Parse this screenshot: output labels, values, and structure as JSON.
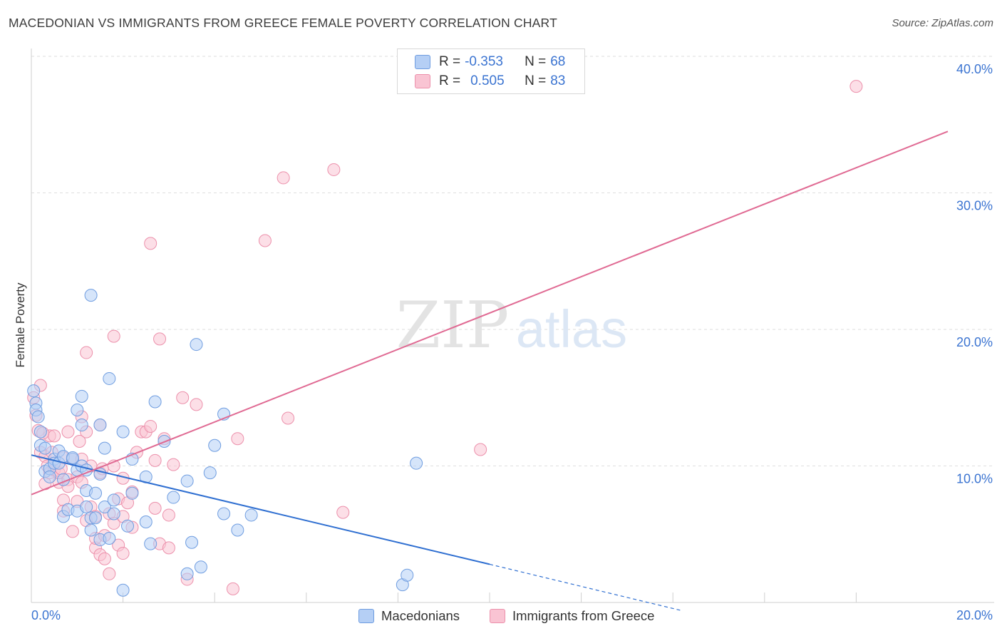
{
  "title": "MACEDONIAN VS IMMIGRANTS FROM GREECE FEMALE POVERTY CORRELATION CHART",
  "source": "Source: ZipAtlas.com",
  "watermark": {
    "zip": "ZIP",
    "atlas": "atlas"
  },
  "legend": {
    "row1": {
      "r_label": "R = ",
      "r_value": "-0.353",
      "n_label": "N = ",
      "n_value": "68"
    },
    "row2": {
      "r_label": "R = ",
      "r_value": "0.505",
      "n_label": "N = ",
      "n_value": "83"
    }
  },
  "bottom_legend": {
    "series1": "Macedonians",
    "series2": "Immigrants from Greece"
  },
  "colors": {
    "blue_fill": "#b5cff5",
    "blue_stroke": "#6f9de0",
    "blue_line": "#2f6fd1",
    "pink_fill": "#f9c4d3",
    "pink_stroke": "#ec90ab",
    "pink_line": "#e06a93",
    "axis_label": "#3b74d1"
  },
  "chart_data": {
    "type": "scatter",
    "title": "MACEDONIAN VS IMMIGRANTS FROM GREECE FEMALE POVERTY CORRELATION CHART",
    "ylabel": "Female Poverty",
    "xlabel": "",
    "xlim": [
      0,
      20
    ],
    "ylim": [
      0,
      40
    ],
    "x_tick_labels": [
      "0.0%",
      "20.0%"
    ],
    "y_tick_labels": [
      "10.0%",
      "20.0%",
      "30.0%",
      "40.0%"
    ],
    "y_ticks": [
      10,
      20,
      30,
      40
    ],
    "series": [
      {
        "name": "Macedonians",
        "r": -0.353,
        "n": 68,
        "trend": {
          "x0": 0,
          "y0": 10.8,
          "x1": 10,
          "y1": 2.8,
          "dashed_to_x": 14.2,
          "dashed_to_y": -0.6
        },
        "points": [
          [
            0.1,
            14.6
          ],
          [
            0.1,
            14.1
          ],
          [
            0.2,
            12.5
          ],
          [
            0.2,
            11.5
          ],
          [
            0.3,
            11.3
          ],
          [
            0.3,
            9.6
          ],
          [
            0.4,
            9.8
          ],
          [
            0.4,
            9.2
          ],
          [
            0.5,
            10.5
          ],
          [
            0.5,
            10.2
          ],
          [
            0.6,
            11.1
          ],
          [
            0.6,
            10.2
          ],
          [
            0.7,
            10.7
          ],
          [
            0.7,
            9.0
          ],
          [
            0.7,
            6.3
          ],
          [
            0.8,
            6.8
          ],
          [
            0.9,
            10.5
          ],
          [
            0.9,
            10.6
          ],
          [
            1.0,
            14.1
          ],
          [
            1.0,
            6.7
          ],
          [
            1.0,
            9.7
          ],
          [
            1.1,
            15.1
          ],
          [
            1.1,
            13.0
          ],
          [
            1.1,
            10.0
          ],
          [
            1.2,
            9.7
          ],
          [
            1.2,
            7.0
          ],
          [
            1.2,
            8.2
          ],
          [
            1.3,
            5.3
          ],
          [
            1.3,
            22.5
          ],
          [
            1.3,
            6.2
          ],
          [
            1.4,
            6.2
          ],
          [
            1.4,
            8.0
          ],
          [
            1.5,
            13.0
          ],
          [
            1.5,
            9.4
          ],
          [
            1.5,
            4.6
          ],
          [
            1.6,
            7.0
          ],
          [
            1.6,
            11.3
          ],
          [
            1.7,
            4.7
          ],
          [
            1.7,
            16.4
          ],
          [
            1.8,
            6.5
          ],
          [
            1.8,
            7.5
          ],
          [
            2.0,
            12.5
          ],
          [
            2.0,
            0.9
          ],
          [
            2.1,
            5.6
          ],
          [
            2.2,
            8.0
          ],
          [
            2.2,
            10.5
          ],
          [
            2.5,
            9.2
          ],
          [
            2.5,
            5.9
          ],
          [
            2.6,
            4.3
          ],
          [
            2.7,
            14.7
          ],
          [
            2.9,
            11.8
          ],
          [
            3.1,
            7.7
          ],
          [
            3.4,
            8.9
          ],
          [
            3.4,
            2.1
          ],
          [
            3.5,
            4.4
          ],
          [
            3.6,
            18.9
          ],
          [
            3.7,
            2.6
          ],
          [
            3.9,
            9.5
          ],
          [
            4.0,
            11.5
          ],
          [
            4.2,
            6.5
          ],
          [
            4.2,
            13.8
          ],
          [
            4.5,
            5.3
          ],
          [
            4.8,
            6.4
          ],
          [
            8.1,
            1.3
          ],
          [
            8.2,
            2.0
          ],
          [
            8.4,
            10.2
          ],
          [
            0.05,
            15.5
          ],
          [
            0.15,
            13.6
          ]
        ]
      },
      {
        "name": "Immigrants from Greece",
        "r": 0.505,
        "n": 83,
        "trend": {
          "x0": 0,
          "y0": 7.9,
          "x1": 20,
          "y1": 34.5
        },
        "points": [
          [
            0.05,
            15.0
          ],
          [
            0.1,
            13.7
          ],
          [
            0.15,
            12.6
          ],
          [
            0.2,
            15.9
          ],
          [
            0.2,
            11.0
          ],
          [
            0.3,
            10.7
          ],
          [
            0.3,
            8.7
          ],
          [
            0.35,
            10.0
          ],
          [
            0.4,
            12.2
          ],
          [
            0.4,
            9.5
          ],
          [
            0.5,
            12.2
          ],
          [
            0.5,
            9.7
          ],
          [
            0.6,
            8.8
          ],
          [
            0.6,
            9.5
          ],
          [
            0.7,
            10.6
          ],
          [
            0.7,
            7.5
          ],
          [
            0.7,
            6.7
          ],
          [
            0.8,
            12.5
          ],
          [
            0.8,
            9.0
          ],
          [
            0.8,
            8.5
          ],
          [
            0.9,
            10.5
          ],
          [
            0.9,
            5.2
          ],
          [
            1.0,
            9.2
          ],
          [
            1.0,
            7.4
          ],
          [
            1.1,
            10.5
          ],
          [
            1.1,
            8.8
          ],
          [
            1.1,
            13.6
          ],
          [
            1.2,
            12.5
          ],
          [
            1.2,
            6.0
          ],
          [
            1.2,
            18.3
          ],
          [
            1.3,
            10.0
          ],
          [
            1.3,
            7.0
          ],
          [
            1.4,
            4.0
          ],
          [
            1.4,
            6.3
          ],
          [
            1.4,
            4.7
          ],
          [
            1.5,
            9.5
          ],
          [
            1.5,
            3.5
          ],
          [
            1.5,
            13.0
          ],
          [
            1.6,
            4.9
          ],
          [
            1.6,
            3.2
          ],
          [
            1.7,
            6.5
          ],
          [
            1.7,
            2.1
          ],
          [
            1.8,
            19.5
          ],
          [
            1.8,
            10.0
          ],
          [
            1.8,
            5.8
          ],
          [
            1.9,
            4.2
          ],
          [
            1.9,
            7.6
          ],
          [
            2.0,
            6.3
          ],
          [
            2.0,
            3.6
          ],
          [
            2.0,
            9.1
          ],
          [
            2.1,
            7.3
          ],
          [
            2.2,
            5.5
          ],
          [
            2.2,
            8.1
          ],
          [
            2.3,
            11.0
          ],
          [
            2.4,
            12.5
          ],
          [
            2.5,
            12.5
          ],
          [
            2.6,
            26.3
          ],
          [
            2.6,
            12.9
          ],
          [
            2.7,
            6.9
          ],
          [
            2.7,
            10.4
          ],
          [
            2.8,
            19.3
          ],
          [
            2.8,
            4.3
          ],
          [
            2.9,
            12.0
          ],
          [
            3.0,
            6.4
          ],
          [
            3.0,
            4.0
          ],
          [
            3.1,
            10.1
          ],
          [
            3.3,
            15.0
          ],
          [
            3.4,
            1.7
          ],
          [
            3.6,
            14.5
          ],
          [
            4.4,
            1.0
          ],
          [
            4.5,
            12.0
          ],
          [
            5.1,
            26.5
          ],
          [
            5.5,
            31.1
          ],
          [
            5.6,
            13.5
          ],
          [
            6.6,
            31.7
          ],
          [
            6.8,
            6.6
          ],
          [
            9.8,
            11.2
          ],
          [
            18.0,
            37.8
          ],
          [
            0.25,
            12.4
          ],
          [
            0.45,
            11.0
          ],
          [
            0.65,
            9.8
          ],
          [
            1.05,
            11.8
          ],
          [
            1.55,
            9.8
          ]
        ]
      }
    ]
  }
}
